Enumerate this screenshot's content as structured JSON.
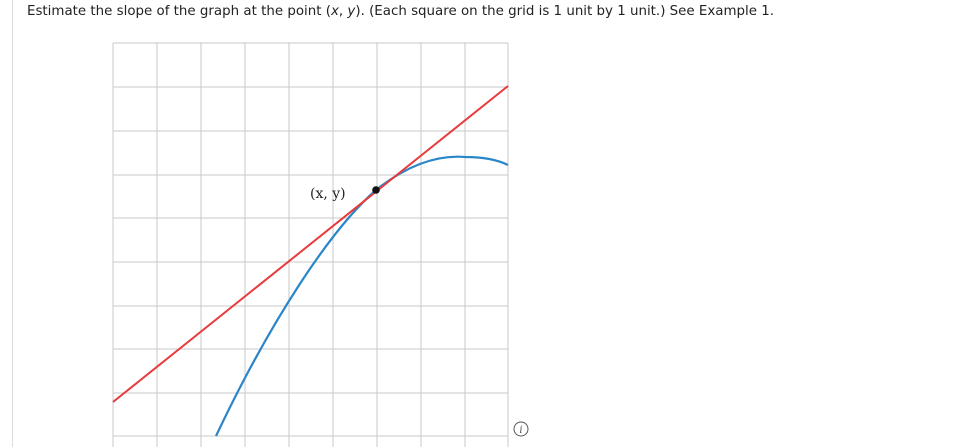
{
  "question": {
    "text_before": "Estimate the slope of the graph at the point (",
    "var_x": "x",
    "comma": ", ",
    "var_y": "y",
    "text_after": "). (Each square on the grid is 1 unit by 1 unit.) See Example 1."
  },
  "graph": {
    "point_label": "(x, y)"
  }
}
